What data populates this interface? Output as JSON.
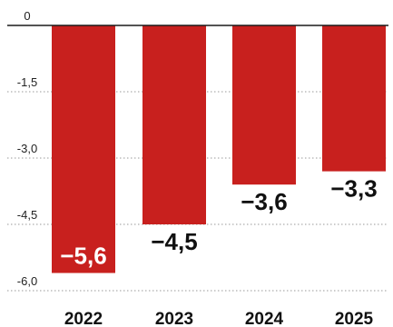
{
  "chart_data": {
    "type": "bar",
    "categories": [
      "2022",
      "2023",
      "2024",
      "2025"
    ],
    "values": [
      -5.6,
      -4.5,
      -3.6,
      -3.3
    ],
    "value_labels": [
      "−5,6",
      "−4,5",
      "−3,6",
      "−3,3"
    ],
    "ylim": [
      -6.0,
      0
    ],
    "yticks": [
      0,
      -1.5,
      -3.0,
      -4.5,
      -6.0
    ],
    "ytick_labels": [
      "0",
      "-1,5",
      "-3,0",
      "-4,5",
      "-6,0"
    ],
    "grid": "dotted horizontal",
    "title": "",
    "xlabel": "",
    "ylabel": "",
    "colors": {
      "bar": "#c8201e",
      "zero_line": "#1a1a1a",
      "grid": "#999999",
      "label_inside_bar": "#ffffff",
      "label_outside_bar": "#111111"
    }
  }
}
